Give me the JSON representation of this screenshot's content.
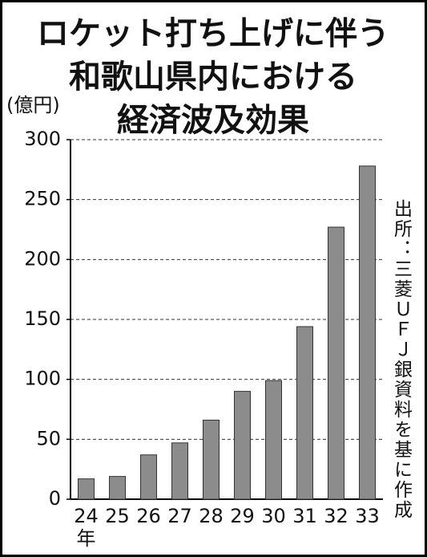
{
  "chart_data": {
    "type": "bar",
    "title": [
      "ロケット打ち上げに伴う",
      "和歌山県内における",
      "経済波及効果"
    ],
    "y_label": "(億円)",
    "x_unit": "年",
    "source": "出所：三菱ＵＦＪ銀資料を基に作成",
    "categories": [
      "24",
      "25",
      "26",
      "27",
      "28",
      "29",
      "30",
      "31",
      "32",
      "33"
    ],
    "values": [
      17,
      19,
      37,
      47,
      66,
      90,
      99,
      144,
      227,
      278
    ],
    "color": "#8c8c8c",
    "ylim": [
      0,
      300
    ],
    "yticks": [
      0,
      50,
      100,
      150,
      200,
      250,
      300
    ],
    "grid": true
  }
}
